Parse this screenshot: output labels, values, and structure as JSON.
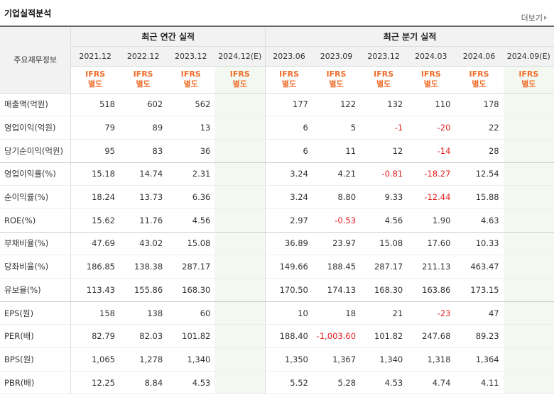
{
  "section_title": "기업실적분석",
  "more_label": "더보기",
  "row_header_label": "주요재무정보",
  "annual_group_label": "최근 연간 실적",
  "quarter_group_label": "최근 분기 실적",
  "annual_periods": [
    "2021.12",
    "2022.12",
    "2023.12",
    "2024.12(E)"
  ],
  "quarter_periods": [
    "2023.06",
    "2023.09",
    "2023.12",
    "2024.03",
    "2024.06",
    "2024.09(E)"
  ],
  "ifrs_label": "IFRS",
  "ifrs_sub_label": "별도",
  "rows": [
    {
      "label": "매출액(억원)",
      "annual": [
        "518",
        "602",
        "562",
        ""
      ],
      "quarter": [
        "177",
        "122",
        "132",
        "110",
        "178",
        ""
      ]
    },
    {
      "label": "영업이익(억원)",
      "annual": [
        "79",
        "89",
        "13",
        ""
      ],
      "quarter": [
        "6",
        "5",
        "-1",
        "-20",
        "22",
        ""
      ]
    },
    {
      "label": "당기순이익(억원)",
      "annual": [
        "95",
        "83",
        "36",
        ""
      ],
      "quarter": [
        "6",
        "11",
        "12",
        "-14",
        "28",
        ""
      ]
    },
    {
      "label": "영업이익률(%)",
      "annual": [
        "15.18",
        "14.74",
        "2.31",
        ""
      ],
      "quarter": [
        "3.24",
        "4.21",
        "-0.81",
        "-18.27",
        "12.54",
        ""
      ]
    },
    {
      "label": "순이익률(%)",
      "annual": [
        "18.24",
        "13.73",
        "6.36",
        ""
      ],
      "quarter": [
        "3.24",
        "8.80",
        "9.33",
        "-12.44",
        "15.88",
        ""
      ]
    },
    {
      "label": "ROE(%)",
      "annual": [
        "15.62",
        "11.76",
        "4.56",
        ""
      ],
      "quarter": [
        "2.97",
        "-0.53",
        "4.56",
        "1.90",
        "4.63",
        ""
      ]
    },
    {
      "label": "부채비율(%)",
      "annual": [
        "47.69",
        "43.02",
        "15.08",
        ""
      ],
      "quarter": [
        "36.89",
        "23.97",
        "15.08",
        "17.60",
        "10.33",
        ""
      ]
    },
    {
      "label": "당좌비율(%)",
      "annual": [
        "186.85",
        "138.38",
        "287.17",
        ""
      ],
      "quarter": [
        "149.66",
        "188.45",
        "287.17",
        "211.13",
        "463.47",
        ""
      ]
    },
    {
      "label": "유보율(%)",
      "annual": [
        "113.43",
        "155.86",
        "168.30",
        ""
      ],
      "quarter": [
        "170.50",
        "174.13",
        "168.30",
        "163.86",
        "173.15",
        ""
      ]
    },
    {
      "label": "EPS(원)",
      "annual": [
        "158",
        "138",
        "60",
        ""
      ],
      "quarter": [
        "10",
        "18",
        "21",
        "-23",
        "47",
        ""
      ]
    },
    {
      "label": "PER(배)",
      "annual": [
        "82.79",
        "82.03",
        "101.82",
        ""
      ],
      "quarter": [
        "188.40",
        "-1,003.60",
        "101.82",
        "247.68",
        "89.23",
        ""
      ]
    },
    {
      "label": "BPS(원)",
      "annual": [
        "1,065",
        "1,278",
        "1,340",
        ""
      ],
      "quarter": [
        "1,350",
        "1,367",
        "1,340",
        "1,318",
        "1,364",
        ""
      ]
    },
    {
      "label": "PBR(배)",
      "annual": [
        "12.25",
        "8.84",
        "4.53",
        ""
      ],
      "quarter": [
        "5.52",
        "5.28",
        "4.53",
        "4.74",
        "4.11",
        ""
      ]
    }
  ],
  "colors": {
    "ifrs": "#ef6d2a",
    "negative": "#e21d1d",
    "estimate_bg": "#f3f9f0",
    "header_bg": "#f2f2f2"
  }
}
